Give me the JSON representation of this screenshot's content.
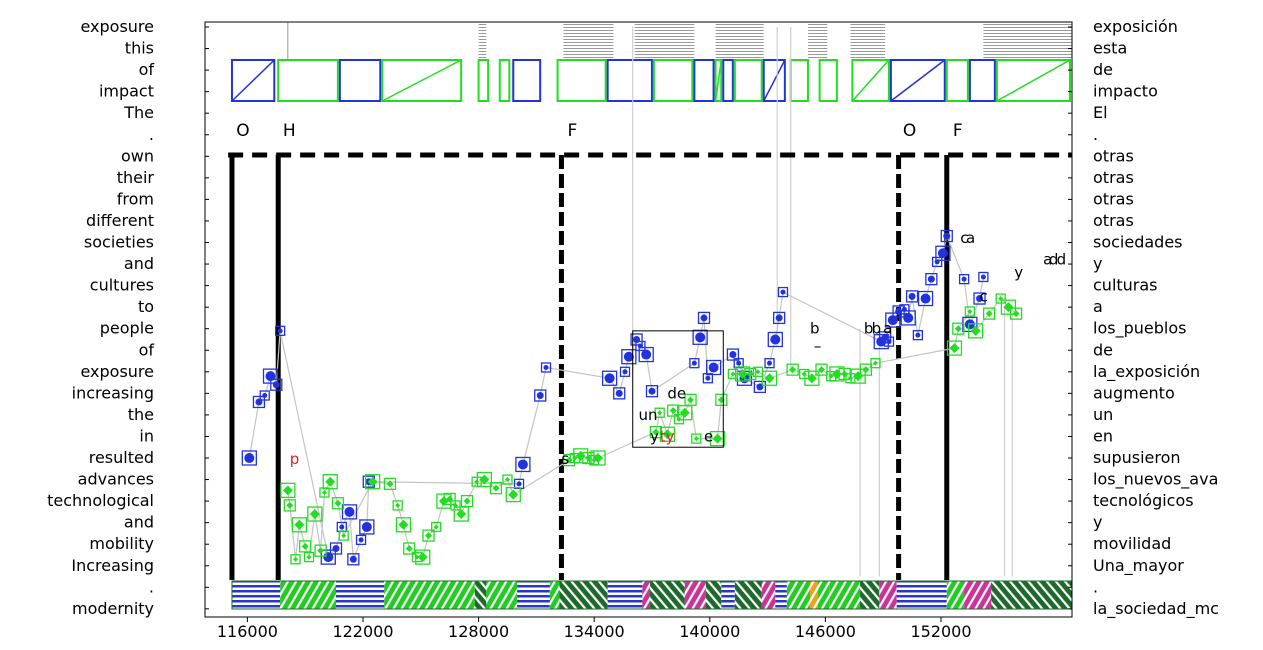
{
  "chart_data": {
    "type": "scatter",
    "title": "",
    "xlabel": "",
    "ylabel": "",
    "xlim": [
      113800,
      158800
    ],
    "x_ticks": [
      "116000",
      "122000",
      "128000",
      "134000",
      "140000",
      "146000",
      "152000"
    ],
    "y_left": [
      "exposure",
      "this",
      "of",
      "impact",
      "The",
      ".",
      "own",
      "their",
      "from",
      "different",
      "societies",
      "and",
      "cultures",
      "to",
      "people",
      "of",
      "exposure",
      "increasing",
      "the",
      "in",
      "resulted",
      "advances",
      "technological",
      "and",
      "mobility",
      "Increasing",
      ".",
      "modernity"
    ],
    "y_right": [
      "exposición",
      "esta",
      "de",
      "impacto",
      "El",
      ".",
      "otras",
      "otras",
      "otras",
      "otras",
      "sociedades",
      "y",
      "culturas",
      "a",
      "los_pueblos",
      "de",
      "la_exposición",
      "augmento",
      "un",
      "en",
      "supusieron",
      "los_nuevos_ava",
      "tecnológicos",
      "y",
      "movilidad",
      "Una_mayor",
      ".",
      "la_sociedad_mc"
    ],
    "boundary_markers": [
      {
        "label": "O",
        "x": 115200
      },
      {
        "label": "H",
        "x": 117600
      },
      {
        "label": "F",
        "x": 132300
      },
      {
        "label": "O",
        "x": 149800
      },
      {
        "label": "F",
        "x": 152300
      }
    ],
    "gray_bands": [
      [
        128000,
        128400
      ],
      [
        132400,
        135000
      ],
      [
        136100,
        139200
      ],
      [
        140300,
        142800
      ],
      [
        145100,
        146100
      ],
      [
        147300,
        149100
      ],
      [
        154200,
        158800
      ]
    ],
    "top_boxes": [
      {
        "x0": 115200,
        "x1": 117500,
        "color": "blue",
        "diag": true
      },
      {
        "x0": 117600,
        "x1": 120800,
        "color": "green",
        "diag": false
      },
      {
        "x0": 120800,
        "x1": 123000,
        "color": "blue",
        "diag": false
      },
      {
        "x0": 123000,
        "x1": 127200,
        "color": "green",
        "diag": true
      },
      {
        "x0": 128000,
        "x1": 128600,
        "color": "green",
        "diag": false
      },
      {
        "x0": 129100,
        "x1": 129700,
        "color": "green",
        "diag": false
      },
      {
        "x0": 129800,
        "x1": 131300,
        "color": "blue",
        "diag": false
      },
      {
        "x0": 132100,
        "x1": 134700,
        "color": "green",
        "diag": false
      },
      {
        "x0": 134700,
        "x1": 137100,
        "color": "blue",
        "diag": false
      },
      {
        "x0": 137100,
        "x1": 139200,
        "color": "green",
        "diag": false
      },
      {
        "x0": 139200,
        "x1": 140300,
        "color": "blue",
        "diag": false
      },
      {
        "x0": 140300,
        "x1": 140700,
        "color": "green",
        "diag": true
      },
      {
        "x0": 140700,
        "x1": 141300,
        "color": "blue",
        "diag": false
      },
      {
        "x0": 141300,
        "x1": 142800,
        "color": "green",
        "diag": false
      },
      {
        "x0": 142800,
        "x1": 144000,
        "color": "blue",
        "diag": true
      },
      {
        "x0": 144200,
        "x1": 145200,
        "color": "green",
        "diag": false
      },
      {
        "x0": 145700,
        "x1": 146700,
        "color": "green",
        "diag": false
      },
      {
        "x0": 147400,
        "x1": 149400,
        "color": "green",
        "diag": true
      },
      {
        "x0": 149400,
        "x1": 152300,
        "color": "blue",
        "diag": true
      },
      {
        "x0": 152300,
        "x1": 153500,
        "color": "green",
        "diag": false
      },
      {
        "x0": 153500,
        "x1": 154900,
        "color": "blue",
        "diag": false
      },
      {
        "x0": 154900,
        "x1": 158800,
        "color": "green",
        "diag": true
      }
    ],
    "bottom_band": [
      {
        "x0": 115200,
        "x1": 117700,
        "style": "h-blue"
      },
      {
        "x0": 117700,
        "x1": 120600,
        "style": "d-green"
      },
      {
        "x0": 120600,
        "x1": 123100,
        "style": "h-blue"
      },
      {
        "x0": 123100,
        "x1": 127800,
        "style": "d-green"
      },
      {
        "x0": 127800,
        "x1": 128400,
        "style": "b-dark"
      },
      {
        "x0": 128400,
        "x1": 130000,
        "style": "d-green"
      },
      {
        "x0": 130000,
        "x1": 131700,
        "style": "h-blue"
      },
      {
        "x0": 131700,
        "x1": 132200,
        "style": "d-green"
      },
      {
        "x0": 132200,
        "x1": 134700,
        "style": "b-dark"
      },
      {
        "x0": 134700,
        "x1": 136500,
        "style": "h-blue"
      },
      {
        "x0": 136500,
        "x1": 136900,
        "style": "d-pink"
      },
      {
        "x0": 136900,
        "x1": 138700,
        "style": "b-dark"
      },
      {
        "x0": 138700,
        "x1": 139800,
        "style": "d-pink"
      },
      {
        "x0": 139800,
        "x1": 140600,
        "style": "b-dark"
      },
      {
        "x0": 140600,
        "x1": 141300,
        "style": "h-blue"
      },
      {
        "x0": 141300,
        "x1": 142700,
        "style": "b-dark"
      },
      {
        "x0": 142700,
        "x1": 143400,
        "style": "d-pink"
      },
      {
        "x0": 143400,
        "x1": 144000,
        "style": "h-blue"
      },
      {
        "x0": 144000,
        "x1": 145200,
        "style": "d-green"
      },
      {
        "x0": 145200,
        "x1": 145600,
        "style": "d-orange"
      },
      {
        "x0": 145600,
        "x1": 146200,
        "style": "d-green"
      },
      {
        "x0": 146200,
        "x1": 147800,
        "style": "d-green"
      },
      {
        "x0": 147800,
        "x1": 148800,
        "style": "b-dark"
      },
      {
        "x0": 148800,
        "x1": 149700,
        "style": "d-pink"
      },
      {
        "x0": 149700,
        "x1": 152300,
        "style": "h-blue"
      },
      {
        "x0": 152300,
        "x1": 153200,
        "style": "d-green"
      },
      {
        "x0": 153200,
        "x1": 154600,
        "style": "d-pink"
      },
      {
        "x0": 154600,
        "x1": 158800,
        "style": "b-dark"
      }
    ],
    "series": [
      {
        "color": "blue",
        "points": [
          [
            116100,
            20
          ],
          [
            116600,
            17.4
          ],
          [
            116900,
            17.1
          ],
          [
            117200,
            16.2
          ],
          [
            117500,
            16.6
          ],
          [
            117700,
            14.1
          ],
          [
            120200,
            24.6
          ],
          [
            120600,
            24.2
          ],
          [
            120900,
            23.2
          ],
          [
            121300,
            22.5
          ],
          [
            121500,
            24.7
          ],
          [
            121900,
            23.8
          ],
          [
            122200,
            23.2
          ],
          [
            122300,
            21.1
          ],
          [
            130100,
            21.2
          ],
          [
            130300,
            20.3
          ],
          [
            131200,
            17.1
          ],
          [
            131500,
            15.8
          ],
          [
            134800,
            16.3
          ],
          [
            135300,
            17.0
          ],
          [
            135600,
            16.0
          ],
          [
            135800,
            15.3
          ],
          [
            136200,
            14.5
          ],
          [
            136400,
            14.8
          ],
          [
            136700,
            15.2
          ],
          [
            137000,
            16.9
          ],
          [
            139200,
            15.6
          ],
          [
            139500,
            14.4
          ],
          [
            139700,
            13.5
          ],
          [
            139900,
            16.3
          ],
          [
            140200,
            15.8
          ],
          [
            141200,
            15.2
          ],
          [
            141500,
            15.6
          ],
          [
            141800,
            16.3
          ],
          [
            142600,
            16.7
          ],
          [
            143100,
            15.6
          ],
          [
            143400,
            14.5
          ],
          [
            143600,
            13.5
          ],
          [
            143800,
            12.3
          ],
          [
            148900,
            14.6
          ],
          [
            149100,
            14.4
          ],
          [
            149300,
            14.6
          ],
          [
            149500,
            13.6
          ],
          [
            149800,
            13.2
          ],
          [
            150100,
            13.1
          ],
          [
            150300,
            13.5
          ],
          [
            150500,
            12.5
          ],
          [
            150800,
            14.3
          ],
          [
            151200,
            12.6
          ],
          [
            151500,
            11.7
          ],
          [
            151800,
            10.9
          ],
          [
            152100,
            10.5
          ],
          [
            152300,
            9.7
          ],
          [
            153200,
            11.7
          ],
          [
            153500,
            13.8
          ],
          [
            154000,
            12.6
          ],
          [
            154200,
            11.6
          ]
        ]
      },
      {
        "color": "green",
        "points": [
          [
            118100,
            21.5
          ],
          [
            118200,
            22.2
          ],
          [
            118500,
            24.7
          ],
          [
            118700,
            23.1
          ],
          [
            119000,
            24.1
          ],
          [
            119200,
            24.6
          ],
          [
            119500,
            22.6
          ],
          [
            119800,
            24.3
          ],
          [
            120000,
            21.6
          ],
          [
            120300,
            21.1
          ],
          [
            120700,
            22.1
          ],
          [
            121000,
            23.6
          ],
          [
            122500,
            21.1
          ],
          [
            123400,
            21.2
          ],
          [
            123800,
            22.2
          ],
          [
            124100,
            23.1
          ],
          [
            124400,
            24.2
          ],
          [
            124800,
            24.6
          ],
          [
            125100,
            24.6
          ],
          [
            125400,
            23.6
          ],
          [
            125800,
            23.2
          ],
          [
            126200,
            22.0
          ],
          [
            126500,
            21.9
          ],
          [
            126800,
            22.2
          ],
          [
            127100,
            22.6
          ],
          [
            127400,
            22.0
          ],
          [
            127900,
            21.1
          ],
          [
            128300,
            21.0
          ],
          [
            128900,
            21.4
          ],
          [
            129500,
            21.0
          ],
          [
            129800,
            21.7
          ],
          [
            132700,
            20.1
          ],
          [
            133000,
            20.0
          ],
          [
            133300,
            19.9
          ],
          [
            133700,
            20.0
          ],
          [
            134000,
            20.1
          ],
          [
            134200,
            20.0
          ],
          [
            137200,
            18.8
          ],
          [
            137400,
            17.9
          ],
          [
            137800,
            18.9
          ],
          [
            138100,
            17.8
          ],
          [
            138400,
            18.2
          ],
          [
            138700,
            17.9
          ],
          [
            139000,
            17.3
          ],
          [
            139300,
            19.1
          ],
          [
            140400,
            19.1
          ],
          [
            140600,
            17.3
          ],
          [
            141200,
            16.1
          ],
          [
            141700,
            16.1
          ],
          [
            142100,
            16.1
          ],
          [
            142500,
            16.0
          ],
          [
            143100,
            16.3
          ],
          [
            144300,
            15.9
          ],
          [
            144900,
            16.1
          ],
          [
            145300,
            16.3
          ],
          [
            145800,
            15.9
          ],
          [
            146300,
            16.2
          ],
          [
            146600,
            16.1
          ],
          [
            147000,
            16.1
          ],
          [
            147300,
            16.3
          ],
          [
            147700,
            16.2
          ],
          [
            148100,
            15.9
          ],
          [
            148600,
            15.6
          ],
          [
            152700,
            14.9
          ],
          [
            152900,
            14.0
          ],
          [
            153500,
            13.2
          ],
          [
            153800,
            14.1
          ],
          [
            154500,
            13.3
          ],
          [
            155100,
            12.6
          ],
          [
            155500,
            13.0
          ],
          [
            155900,
            13.3
          ]
        ]
      }
    ],
    "word_labels": [
      {
        "text": "p",
        "x": 118200,
        "y": 20.05,
        "color": "red"
      },
      {
        "text": "s",
        "x": 132300,
        "y": 20.05,
        "color": "black"
      },
      {
        "text": "un",
        "x": 136300,
        "y": 18.0,
        "color": "black"
      },
      {
        "text": "de",
        "x": 137800,
        "y": 17.0,
        "color": "black"
      },
      {
        "text": "y",
        "x": 136900,
        "y": 19.0,
        "color": "black"
      },
      {
        "text": "ty",
        "x": 137400,
        "y": 19.0,
        "color": "red"
      },
      {
        "text": "e",
        "x": 139700,
        "y": 19.0,
        "color": "black"
      },
      {
        "text": "b",
        "x": 145200,
        "y": 14.0,
        "color": "black"
      },
      {
        "text": "–",
        "x": 145400,
        "y": 14.8,
        "color": "black"
      },
      {
        "text": "b",
        "x": 148000,
        "y": 14.0,
        "color": "black"
      },
      {
        "text": "b",
        "x": 148400,
        "y": 14.0,
        "color": "black"
      },
      {
        "text": "a",
        "x": 149000,
        "y": 14.0,
        "color": "black"
      },
      {
        "text": "c",
        "x": 153000,
        "y": 9.8,
        "color": "black"
      },
      {
        "text": "a",
        "x": 153300,
        "y": 9.8,
        "color": "black"
      },
      {
        "text": "y",
        "x": 155800,
        "y": 11.4,
        "color": "black"
      },
      {
        "text": "c",
        "x": 154000,
        "y": 12.5,
        "color": "black"
      },
      {
        "text": "a",
        "x": 157300,
        "y": 10.8,
        "color": "black"
      },
      {
        "text": "d",
        "x": 157600,
        "y": 10.8,
        "color": "black"
      },
      {
        "text": "d",
        "x": 158000,
        "y": 10.8,
        "color": "black"
      }
    ],
    "highlight_box": {
      "x0": 136000,
      "x1": 140700,
      "y0": 14.1,
      "y1": 19.5
    },
    "gray_lines": [
      {
        "x": 136000,
        "y0": 0,
        "y1": 16.0
      },
      {
        "x": 143500,
        "y0": 0,
        "y1": 14.8
      },
      {
        "x": 144200,
        "y0": 0,
        "y1": 16.0
      },
      {
        "x": 147800,
        "y0": 14.0,
        "y1": 25.5
      },
      {
        "x": 148800,
        "y0": 14.0,
        "y1": 25.5
      },
      {
        "x": 155300,
        "y0": 13.0,
        "y1": 25.5
      },
      {
        "x": 155700,
        "y0": 13.0,
        "y1": 25.5
      }
    ]
  }
}
